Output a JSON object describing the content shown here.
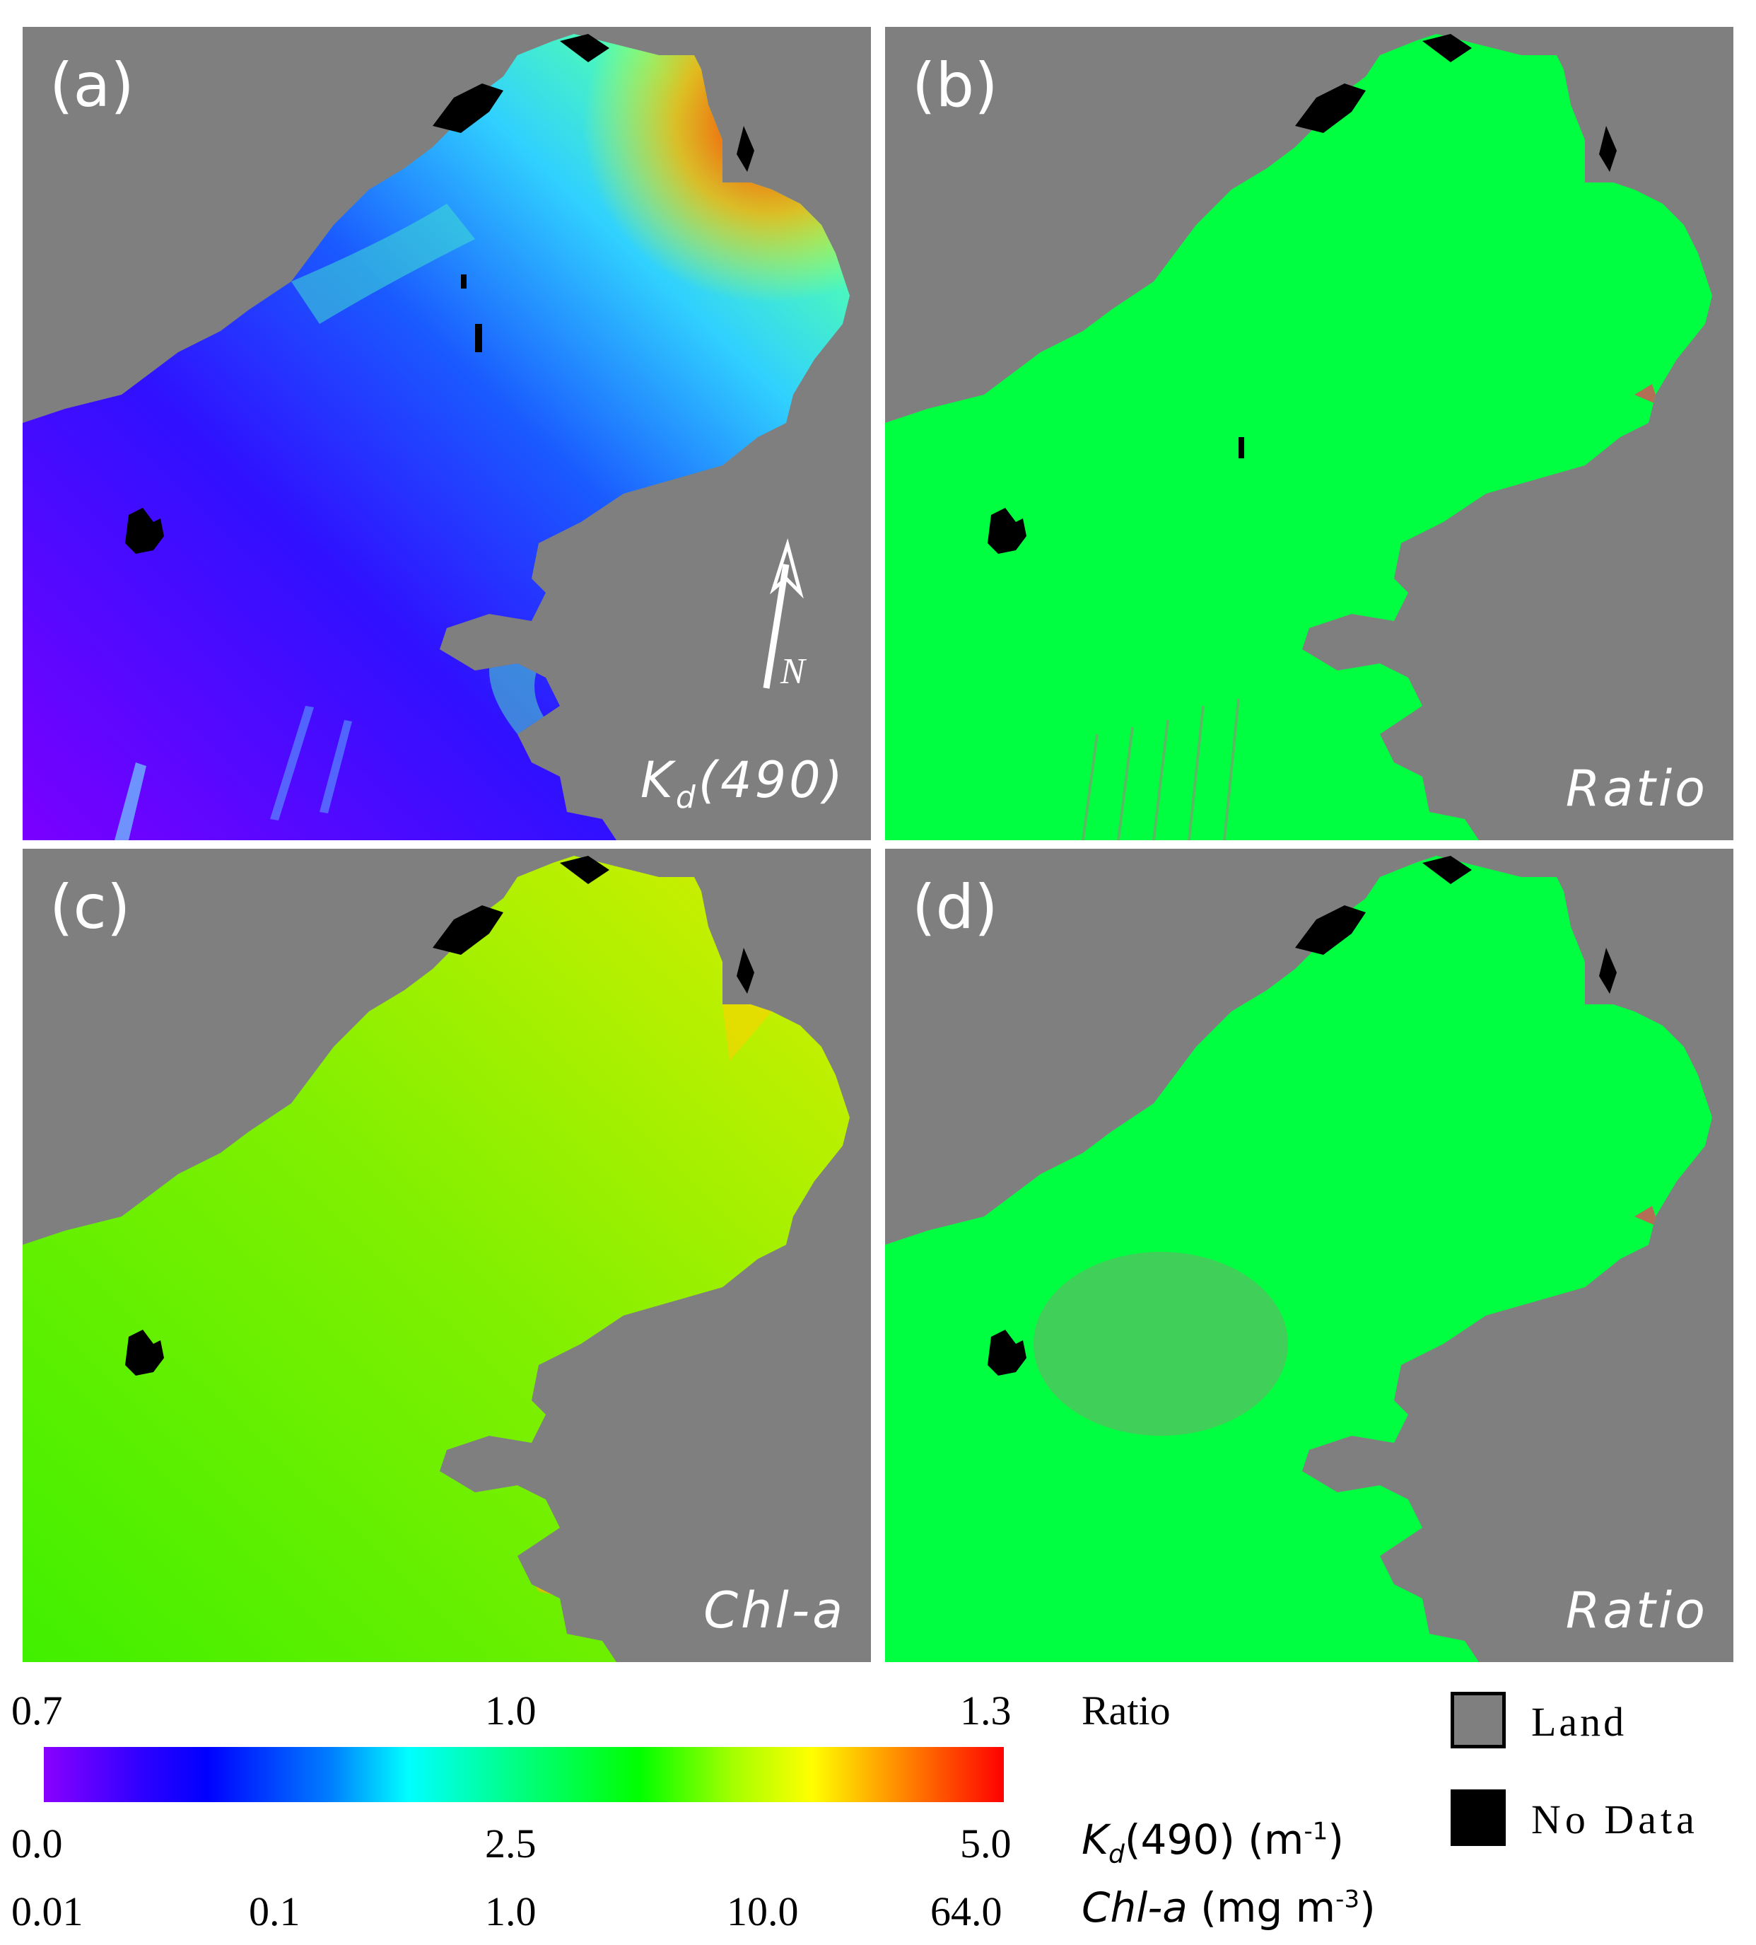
{
  "panels": {
    "a": {
      "letter": "(a)",
      "variable_main": "K",
      "variable_sub": "d",
      "variable_rest": "(490)"
    },
    "b": {
      "letter": "(b)",
      "variable": "Ratio"
    },
    "c": {
      "letter": "(c)",
      "variable": "Chl-a"
    },
    "d": {
      "letter": "(d)",
      "variable": "Ratio"
    }
  },
  "north_arrow": {
    "label": "N"
  },
  "colors": {
    "land": "#7f7f7f",
    "no_data": "#000000",
    "kd_high": "#ff3000",
    "kd_low": "#5a00ff",
    "ratio_one": "#00ff40",
    "chl_mid": "#a8f000"
  },
  "legend": {
    "ratio": {
      "ticks": [
        "0.7",
        "1.0",
        "1.3"
      ],
      "label": "Ratio"
    },
    "kd490": {
      "ticks": [
        "0.0",
        "2.5",
        "5.0"
      ],
      "label_main": "K",
      "label_sub": "d",
      "label_rest": "(490) (m",
      "label_sup": "-1",
      "label_end": ")"
    },
    "chla": {
      "ticks": [
        "0.01",
        "0.1",
        "1.0",
        "10.0",
        "64.0"
      ],
      "label_main": "Chl-a",
      "label_rest": " (mg m",
      "label_sup": "-3",
      "label_end": ")"
    },
    "key": {
      "land": "Land",
      "no_data": "No Data"
    }
  }
}
